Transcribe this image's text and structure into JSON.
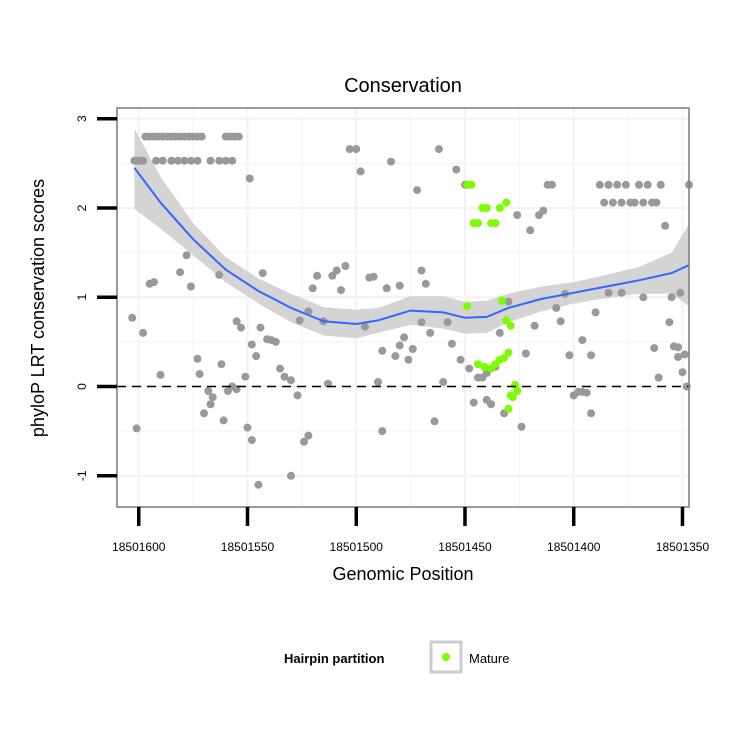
{
  "chart_data": {
    "type": "scatter",
    "title": "Conservation",
    "xlabel": "Genomic Position",
    "ylabel": "phyloP LRT conservation scores",
    "x_reversed": true,
    "xlim": [
      18501610,
      18501347
    ],
    "ylim": [
      -1.35,
      3.12
    ],
    "x_ticks": [
      18501600,
      18501550,
      18501500,
      18501450,
      18501400,
      18501350
    ],
    "x_tick_labels": [
      "18501600",
      "18501550",
      "18501500",
      "18501450",
      "18501400",
      "18501350"
    ],
    "y_ticks": [
      -1,
      0,
      1,
      2,
      3
    ],
    "y_tick_labels": [
      "-1",
      "0",
      "1",
      "2",
      "3"
    ],
    "reference_line": {
      "y": 0,
      "style": "dashed"
    },
    "legend": {
      "title": "Hairpin partition",
      "position": "bottom",
      "entries": [
        {
          "label": "Mature",
          "color": "#7cfc00"
        }
      ]
    },
    "colors": {
      "other": "#999999",
      "mature": "#7cfc00",
      "smooth_line": "#3366ff",
      "ribbon": "#cccccc",
      "grid": "#f3f3f3",
      "panel_border": "#808080"
    },
    "series": [
      {
        "name": "Other",
        "color": "#999999",
        "points": [
          [
            18501602,
            2.53
          ],
          [
            18501601,
            2.53
          ],
          [
            18501600,
            2.53
          ],
          [
            18501599,
            2.53
          ],
          [
            18501598,
            2.53
          ],
          [
            18501597,
            2.8
          ],
          [
            18501595,
            2.8
          ],
          [
            18501593,
            2.8
          ],
          [
            18501591,
            2.8
          ],
          [
            18501589,
            2.8
          ],
          [
            18501587,
            2.8
          ],
          [
            18501585,
            2.8
          ],
          [
            18501583,
            2.8
          ],
          [
            18501581,
            2.8
          ],
          [
            18501579,
            2.8
          ],
          [
            18501577,
            2.8
          ],
          [
            18501575,
            2.8
          ],
          [
            18501573,
            2.8
          ],
          [
            18501571,
            2.8
          ],
          [
            18501560,
            2.8
          ],
          [
            18501558,
            2.8
          ],
          [
            18501556,
            2.8
          ],
          [
            18501554,
            2.8
          ],
          [
            18501592,
            2.53
          ],
          [
            18501589,
            2.53
          ],
          [
            18501585,
            2.53
          ],
          [
            18501582,
            2.53
          ],
          [
            18501579,
            2.53
          ],
          [
            18501576,
            2.53
          ],
          [
            18501573,
            2.53
          ],
          [
            18501567,
            2.53
          ],
          [
            18501563,
            2.53
          ],
          [
            18501560,
            2.53
          ],
          [
            18501557,
            2.53
          ],
          [
            18501603,
            0.77
          ],
          [
            18501601,
            -0.47
          ],
          [
            18501598,
            0.6
          ],
          [
            18501595,
            1.15
          ],
          [
            18501593,
            1.17
          ],
          [
            18501590,
            0.13
          ],
          [
            18501581,
            1.28
          ],
          [
            18501578,
            1.47
          ],
          [
            18501576,
            1.12
          ],
          [
            18501573,
            0.31
          ],
          [
            18501570,
            -0.3
          ],
          [
            18501567,
            -0.2
          ],
          [
            18501566,
            -0.12
          ],
          [
            18501563,
            1.25
          ],
          [
            18501562,
            0.25
          ],
          [
            18501561,
            -0.38
          ],
          [
            18501555,
            0.73
          ],
          [
            18501553,
            0.66
          ],
          [
            18501551,
            0.11
          ],
          [
            18501550,
            -0.46
          ],
          [
            18501549,
            2.33
          ],
          [
            18501548,
            0.47
          ],
          [
            18501546,
            0.34
          ],
          [
            18501544,
            0.66
          ],
          [
            18501543,
            1.27
          ],
          [
            18501541,
            0.53
          ],
          [
            18501539,
            0.52
          ],
          [
            18501537,
            0.5
          ],
          [
            18501535,
            0.2
          ],
          [
            18501533,
            0.11
          ],
          [
            18501530,
            0.07
          ],
          [
            18501527,
            -0.1
          ],
          [
            18501526,
            0.74
          ],
          [
            18501524,
            -0.62
          ],
          [
            18501522,
            0.84
          ],
          [
            18501520,
            1.1
          ],
          [
            18501518,
            1.24
          ],
          [
            18501515,
            0.73
          ],
          [
            18501513,
            0.03
          ],
          [
            18501511,
            1.24
          ],
          [
            18501509,
            1.3
          ],
          [
            18501507,
            1.08
          ],
          [
            18501505,
            1.35
          ],
          [
            18501503,
            2.66
          ],
          [
            18501500,
            2.66
          ],
          [
            18501498,
            2.41
          ],
          [
            18501496,
            0.67
          ],
          [
            18501494,
            1.22
          ],
          [
            18501492,
            1.23
          ],
          [
            18501490,
            0.05
          ],
          [
            18501488,
            -0.5
          ],
          [
            18501486,
            1.1
          ],
          [
            18501484,
            2.52
          ],
          [
            18501482,
            0.34
          ],
          [
            18501480,
            1.13
          ],
          [
            18501478,
            0.55
          ],
          [
            18501476,
            0.3
          ],
          [
            18501474,
            0.42
          ],
          [
            18501472,
            2.2
          ],
          [
            18501470,
            1.3
          ],
          [
            18501468,
            1.15
          ],
          [
            18501466,
            0.6
          ],
          [
            18501464,
            -0.39
          ],
          [
            18501462,
            2.66
          ],
          [
            18501460,
            0.05
          ],
          [
            18501458,
            0.72
          ],
          [
            18501456,
            0.48
          ],
          [
            18501454,
            2.43
          ],
          [
            18501452,
            0.3
          ],
          [
            18501450,
            2.26
          ],
          [
            18501448,
            0.2
          ],
          [
            18501446,
            -0.18
          ],
          [
            18501444,
            0.1
          ],
          [
            18501442,
            0.1
          ],
          [
            18501440,
            -0.15
          ],
          [
            18501438,
            -0.2
          ],
          [
            18501436,
            0.22
          ],
          [
            18501434,
            0.6
          ],
          [
            18501432,
            -0.3
          ],
          [
            18501430,
            0.95
          ],
          [
            18501426,
            1.92
          ],
          [
            18501424,
            -0.45
          ],
          [
            18501422,
            0.37
          ],
          [
            18501420,
            1.75
          ],
          [
            18501418,
            0.68
          ],
          [
            18501416,
            1.92
          ],
          [
            18501414,
            1.97
          ],
          [
            18501412,
            2.26
          ],
          [
            18501410,
            2.26
          ],
          [
            18501408,
            0.88
          ],
          [
            18501406,
            0.73
          ],
          [
            18501404,
            1.04
          ],
          [
            18501402,
            0.35
          ],
          [
            18501400,
            -0.1
          ],
          [
            18501398,
            -0.06
          ],
          [
            18501396,
            -0.06
          ],
          [
            18501394,
            -0.07
          ],
          [
            18501392,
            -0.3
          ],
          [
            18501390,
            0.83
          ],
          [
            18501388,
            2.26
          ],
          [
            18501386,
            2.06
          ],
          [
            18501384,
            2.26
          ],
          [
            18501382,
            2.06
          ],
          [
            18501380,
            2.26
          ],
          [
            18501378,
            2.06
          ],
          [
            18501376,
            2.26
          ],
          [
            18501374,
            2.06
          ],
          [
            18501372,
            2.06
          ],
          [
            18501370,
            2.26
          ],
          [
            18501368,
            2.06
          ],
          [
            18501366,
            2.26
          ],
          [
            18501364,
            2.06
          ],
          [
            18501362,
            2.06
          ],
          [
            18501360,
            2.26
          ],
          [
            18501358,
            1.8
          ],
          [
            18501356,
            0.72
          ],
          [
            18501354,
            0.45
          ],
          [
            18501352,
            0.33
          ],
          [
            18501350,
            0.16
          ],
          [
            18501348,
            0.0
          ],
          [
            18501347,
            2.26
          ],
          [
            18501384,
            1.05
          ],
          [
            18501378,
            1.05
          ],
          [
            18501368,
            1.0
          ],
          [
            18501363,
            0.43
          ],
          [
            18501361,
            0.1
          ],
          [
            18501355,
            1.0
          ],
          [
            18501351,
            1.05
          ],
          [
            18501349,
            0.36
          ],
          [
            18501352,
            0.44
          ],
          [
            18501557,
            0.0
          ],
          [
            18501559,
            -0.05
          ],
          [
            18501555,
            -0.03
          ],
          [
            18501522,
            -0.55
          ],
          [
            18501530,
            -1.0
          ],
          [
            18501572,
            0.14
          ],
          [
            18501568,
            -0.05
          ],
          [
            18501548,
            -0.6
          ],
          [
            18501545,
            -1.1
          ],
          [
            18501488,
            0.4
          ],
          [
            18501480,
            0.46
          ],
          [
            18501470,
            0.72
          ],
          [
            18501440,
            0.15
          ],
          [
            18501396,
            0.52
          ],
          [
            18501392,
            0.35
          ]
        ]
      },
      {
        "name": "Mature",
        "color": "#7cfc00",
        "points": [
          [
            18501449,
            2.26
          ],
          [
            18501447,
            2.26
          ],
          [
            18501446,
            1.83
          ],
          [
            18501444,
            1.83
          ],
          [
            18501442,
            2.0
          ],
          [
            18501440,
            2.0
          ],
          [
            18501438,
            1.83
          ],
          [
            18501436,
            1.83
          ],
          [
            18501434,
            2.0
          ],
          [
            18501431,
            2.06
          ],
          [
            18501449,
            0.9
          ],
          [
            18501444,
            0.25
          ],
          [
            18501441,
            0.22
          ],
          [
            18501438,
            0.2
          ],
          [
            18501436,
            0.25
          ],
          [
            18501434,
            0.3
          ],
          [
            18501432,
            0.32
          ],
          [
            18501430,
            0.38
          ],
          [
            18501433,
            0.96
          ],
          [
            18501431,
            0.74
          ],
          [
            18501429,
            0.68
          ],
          [
            18501430,
            -0.25
          ],
          [
            18501429,
            -0.1
          ],
          [
            18501428,
            -0.12
          ],
          [
            18501427,
            0.02
          ],
          [
            18501426,
            -0.05
          ]
        ]
      }
    ],
    "smooth": {
      "method": "loess",
      "color": "#3366ff",
      "points": [
        [
          18501602,
          2.45
        ],
        [
          18501590,
          2.06
        ],
        [
          18501575,
          1.65
        ],
        [
          18501560,
          1.31
        ],
        [
          18501545,
          1.07
        ],
        [
          18501530,
          0.88
        ],
        [
          18501515,
          0.73
        ],
        [
          18501500,
          0.7
        ],
        [
          18501490,
          0.74
        ],
        [
          18501475,
          0.85
        ],
        [
          18501460,
          0.83
        ],
        [
          18501450,
          0.77
        ],
        [
          18501440,
          0.78
        ],
        [
          18501430,
          0.88
        ],
        [
          18501415,
          0.98
        ],
        [
          18501400,
          1.05
        ],
        [
          18501385,
          1.12
        ],
        [
          18501370,
          1.19
        ],
        [
          18501355,
          1.27
        ],
        [
          18501347,
          1.36
        ]
      ],
      "lower": [
        [
          18501602,
          1.99
        ],
        [
          18501590,
          1.77
        ],
        [
          18501575,
          1.47
        ],
        [
          18501560,
          1.17
        ],
        [
          18501545,
          0.93
        ],
        [
          18501530,
          0.72
        ],
        [
          18501515,
          0.57
        ],
        [
          18501500,
          0.54
        ],
        [
          18501490,
          0.6
        ],
        [
          18501475,
          0.69
        ],
        [
          18501460,
          0.65
        ],
        [
          18501450,
          0.59
        ],
        [
          18501440,
          0.6
        ],
        [
          18501430,
          0.72
        ],
        [
          18501415,
          0.84
        ],
        [
          18501400,
          0.93
        ],
        [
          18501385,
          0.99
        ],
        [
          18501370,
          1.04
        ],
        [
          18501355,
          1.04
        ],
        [
          18501347,
          0.9
        ]
      ],
      "upper": [
        [
          18501602,
          2.89
        ],
        [
          18501590,
          2.35
        ],
        [
          18501575,
          1.83
        ],
        [
          18501560,
          1.45
        ],
        [
          18501545,
          1.21
        ],
        [
          18501530,
          1.04
        ],
        [
          18501515,
          0.89
        ],
        [
          18501500,
          0.86
        ],
        [
          18501490,
          0.88
        ],
        [
          18501475,
          1.01
        ],
        [
          18501460,
          1.01
        ],
        [
          18501450,
          0.95
        ],
        [
          18501440,
          0.96
        ],
        [
          18501430,
          1.04
        ],
        [
          18501415,
          1.12
        ],
        [
          18501400,
          1.17
        ],
        [
          18501385,
          1.25
        ],
        [
          18501370,
          1.34
        ],
        [
          18501355,
          1.5
        ],
        [
          18501347,
          1.82
        ]
      ]
    }
  }
}
